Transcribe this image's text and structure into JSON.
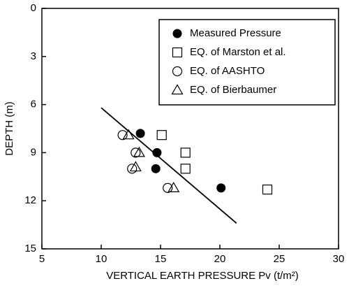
{
  "chart_data": {
    "type": "scatter",
    "xlabel": "VERTICAL EARTH PRESSURE Pv (t/m²)",
    "ylabel": "DEPTH (m)",
    "xlim": [
      5,
      30
    ],
    "xticks": [
      5,
      10,
      15,
      20,
      25,
      30
    ],
    "ylim": [
      0,
      15
    ],
    "yticks": [
      0,
      3,
      6,
      9,
      12,
      15
    ],
    "y_inverted": true,
    "legend": "upper right",
    "series": [
      {
        "name": "Measured Pressure",
        "marker": "filled-circle",
        "color": "#000000",
        "x": [
          13.3,
          14.7,
          14.6,
          20.1
        ],
        "values": [
          7.8,
          9.0,
          10.0,
          11.2
        ]
      },
      {
        "name": "EQ. of Marston et al.",
        "marker": "square",
        "color": "#000000",
        "x": [
          15.1,
          17.1,
          17.1,
          24.0
        ],
        "values": [
          7.9,
          9.0,
          10.0,
          11.3
        ]
      },
      {
        "name": "EQ. of AASHTO",
        "marker": "circle",
        "color": "#000000",
        "x": [
          11.8,
          12.9,
          12.6,
          15.6
        ],
        "values": [
          7.9,
          9.0,
          10.0,
          11.2
        ]
      },
      {
        "name": "EQ. of Bierbaumer",
        "marker": "triangle",
        "color": "#000000",
        "x": [
          12.3,
          13.2,
          12.9,
          16.1
        ],
        "values": [
          7.9,
          9.0,
          9.9,
          11.2
        ]
      }
    ],
    "trend_line": {
      "x": [
        10,
        21.4
      ],
      "values": [
        6.2,
        13.4
      ],
      "color": "#000000"
    }
  }
}
